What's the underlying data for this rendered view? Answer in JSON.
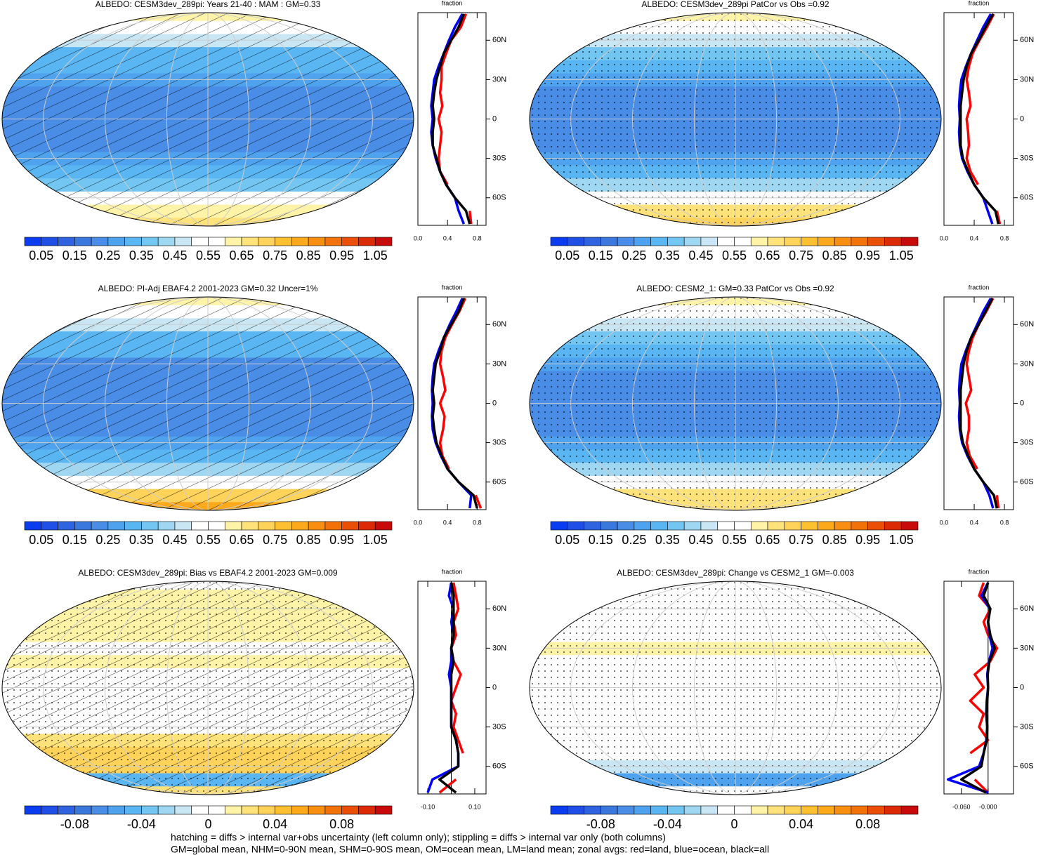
{
  "chart_data": [
    {
      "type": "map",
      "title": "ALBEDO: CESM3dev_289pi: Years 21-40 : MAM : GM=0.33",
      "hatching": true,
      "stippling": false,
      "xlim": [
        0,
        1.1
      ],
      "xticks": [
        0.05,
        0.15,
        0.25,
        0.35,
        0.45,
        0.55,
        0.65,
        0.75,
        0.85,
        0.95,
        1.05
      ],
      "colors": [
        "#0a3cf0",
        "#1f4fe6",
        "#2f63e0",
        "#3b78de",
        "#4a8de6",
        "#4fa3ee",
        "#5ab6f2",
        "#74c6f2",
        "#9fd6f2",
        "#c8e6f4",
        "#ffffff",
        "#ffffff",
        "#fff3a8",
        "#ffe27a",
        "#ffd25a",
        "#fdc030",
        "#fca91b",
        "#f88f10",
        "#f27108",
        "#ea4f05",
        "#dd2a06",
        "#c80a0a"
      ]
    },
    {
      "type": "line",
      "x_label": "fraction",
      "lat": [
        -80,
        -70,
        -60,
        -50,
        -40,
        -30,
        -20,
        -10,
        0,
        10,
        20,
        30,
        40,
        50,
        60,
        70,
        80
      ],
      "ylim": [
        -81,
        81
      ],
      "yticks": [
        {
          "value": -60,
          "label": "60S"
        },
        {
          "value": -30,
          "label": "30S"
        },
        0,
        {
          "value": 30,
          "label": "30N"
        },
        {
          "value": 60,
          "label": "60N"
        }
      ],
      "xlim": [
        0,
        0.92
      ],
      "xticks": [
        {
          "value": 0,
          "label": "0.0"
        },
        0.4,
        0.8
      ],
      "series": [
        {
          "color": "#ff0000",
          "values": [
            0.72,
            0.7,
            null,
            0.4,
            0.3,
            0.28,
            0.3,
            0.32,
            0.28,
            0.33,
            0.3,
            0.32,
            0.32,
            0.38,
            0.45,
            0.58,
            0.65
          ]
        },
        {
          "color": "#0000ff",
          "values": [
            0.62,
            0.55,
            0.5,
            0.38,
            0.3,
            0.24,
            0.2,
            0.18,
            0.2,
            0.18,
            0.2,
            0.22,
            0.28,
            0.35,
            0.42,
            0.5,
            0.6
          ]
        },
        {
          "color": "#000000",
          "values": [
            0.7,
            0.65,
            0.5,
            0.38,
            0.3,
            0.25,
            0.2,
            0.2,
            0.22,
            0.2,
            0.22,
            0.25,
            0.3,
            0.35,
            0.45,
            0.55,
            0.62
          ]
        }
      ]
    },
    {
      "type": "map",
      "title": "ALBEDO: CESM3dev_289pi PatCor vs Obs =0.92",
      "hatching": false,
      "stippling": true,
      "xlim": [
        0,
        1.1
      ],
      "xticks": [
        0.05,
        0.15,
        0.25,
        0.35,
        0.45,
        0.55,
        0.65,
        0.75,
        0.85,
        0.95,
        1.05
      ],
      "colors": [
        "#0a3cf0",
        "#1f4fe6",
        "#2f63e0",
        "#3b78de",
        "#4a8de6",
        "#4fa3ee",
        "#5ab6f2",
        "#74c6f2",
        "#9fd6f2",
        "#c8e6f4",
        "#ffffff",
        "#ffffff",
        "#fff3a8",
        "#ffe27a",
        "#ffd25a",
        "#fdc030",
        "#fca91b",
        "#f88f10",
        "#f27108",
        "#ea4f05",
        "#dd2a06",
        "#c80a0a"
      ]
    },
    {
      "type": "line",
      "x_label": "fraction",
      "lat": [
        -80,
        -70,
        -60,
        -50,
        -40,
        -30,
        -20,
        -10,
        0,
        10,
        20,
        30,
        40,
        50,
        60,
        70,
        80
      ],
      "ylim": [
        -81,
        81
      ],
      "yticks": [
        {
          "value": -60,
          "label": "60S"
        },
        {
          "value": -30,
          "label": "30S"
        },
        0,
        {
          "value": 30,
          "label": "30N"
        },
        {
          "value": 60,
          "label": "60N"
        }
      ],
      "xlim": [
        0,
        0.92
      ],
      "xticks": [
        {
          "value": 0,
          "label": "0.0"
        },
        0.4,
        0.8
      ],
      "series": [
        {
          "color": "#ff0000",
          "values": [
            0.74,
            0.7,
            null,
            0.45,
            0.35,
            0.3,
            0.33,
            0.32,
            0.3,
            0.35,
            0.33,
            0.3,
            0.33,
            0.38,
            0.47,
            0.57,
            0.66
          ]
        },
        {
          "color": "#0000ff",
          "values": [
            0.64,
            0.58,
            0.52,
            0.4,
            0.31,
            0.24,
            0.21,
            0.2,
            0.21,
            0.2,
            0.21,
            0.23,
            0.29,
            0.36,
            0.44,
            0.52,
            0.62
          ]
        },
        {
          "color": "#000000",
          "values": [
            0.72,
            0.68,
            0.52,
            0.4,
            0.32,
            0.25,
            0.22,
            0.22,
            0.22,
            0.22,
            0.24,
            0.26,
            0.3,
            0.36,
            0.46,
            0.55,
            0.65
          ]
        }
      ]
    },
    {
      "type": "map",
      "title": "ALBEDO: PI-Adj EBAF4.2 2001-2023 GM=0.32 Uncer=1%",
      "hatching": true,
      "stippling": false,
      "xlim": [
        0,
        1.1
      ],
      "xticks": [
        0.05,
        0.15,
        0.25,
        0.35,
        0.45,
        0.55,
        0.65,
        0.75,
        0.85,
        0.95,
        1.05
      ],
      "colors": [
        "#0a3cf0",
        "#1f4fe6",
        "#2f63e0",
        "#3b78de",
        "#4a8de6",
        "#4fa3ee",
        "#5ab6f2",
        "#74c6f2",
        "#9fd6f2",
        "#c8e6f4",
        "#ffffff",
        "#ffffff",
        "#fff3a8",
        "#ffe27a",
        "#ffd25a",
        "#fdc030",
        "#fca91b",
        "#f88f10",
        "#f27108",
        "#ea4f05",
        "#dd2a06",
        "#c80a0a"
      ]
    },
    {
      "type": "line",
      "x_label": "fraction",
      "lat": [
        -80,
        -70,
        -60,
        -50,
        -40,
        -30,
        -20,
        -10,
        0,
        10,
        20,
        30,
        40,
        50,
        60,
        70,
        80
      ],
      "ylim": [
        -81,
        81
      ],
      "yticks": [
        {
          "value": -60,
          "label": "60S"
        },
        {
          "value": -30,
          "label": "30S"
        },
        0,
        {
          "value": 30,
          "label": "30N"
        },
        {
          "value": 60,
          "label": "60N"
        }
      ],
      "xlim": [
        0,
        0.92
      ],
      "xticks": [
        {
          "value": 0,
          "label": "0.0"
        },
        0.4,
        0.8
      ],
      "series": [
        {
          "color": "#ff0000",
          "values": [
            0.85,
            0.78,
            null,
            0.42,
            0.33,
            0.3,
            0.34,
            0.36,
            0.3,
            0.37,
            0.34,
            0.3,
            0.32,
            0.37,
            0.46,
            0.56,
            0.64
          ]
        },
        {
          "color": "#0000ff",
          "values": [
            0.7,
            0.72,
            0.55,
            0.4,
            0.31,
            0.24,
            0.2,
            0.19,
            0.2,
            0.19,
            0.2,
            0.22,
            0.28,
            0.35,
            0.43,
            0.52,
            0.6
          ]
        },
        {
          "color": "#000000",
          "values": [
            0.8,
            0.75,
            0.55,
            0.4,
            0.32,
            0.25,
            0.22,
            0.2,
            0.22,
            0.2,
            0.22,
            0.24,
            0.3,
            0.35,
            0.45,
            0.55,
            0.62
          ]
        }
      ]
    },
    {
      "type": "map",
      "title": "ALBEDO: CESM2_1: GM=0.33 PatCor vs Obs =0.92",
      "hatching": false,
      "stippling": true,
      "xlim": [
        0,
        1.1
      ],
      "xticks": [
        0.05,
        0.15,
        0.25,
        0.35,
        0.45,
        0.55,
        0.65,
        0.75,
        0.85,
        0.95,
        1.05
      ],
      "colors": [
        "#0a3cf0",
        "#1f4fe6",
        "#2f63e0",
        "#3b78de",
        "#4a8de6",
        "#4fa3ee",
        "#5ab6f2",
        "#74c6f2",
        "#9fd6f2",
        "#c8e6f4",
        "#ffffff",
        "#ffffff",
        "#fff3a8",
        "#ffe27a",
        "#ffd25a",
        "#fdc030",
        "#fca91b",
        "#f88f10",
        "#f27108",
        "#ea4f05",
        "#dd2a06",
        "#c80a0a"
      ]
    },
    {
      "type": "line",
      "x_label": "fraction",
      "lat": [
        -80,
        -70,
        -60,
        -50,
        -40,
        -30,
        -20,
        -10,
        0,
        10,
        20,
        30,
        40,
        50,
        60,
        70,
        80
      ],
      "ylim": [
        -81,
        81
      ],
      "yticks": [
        {
          "value": -60,
          "label": "60S"
        },
        {
          "value": -30,
          "label": "30S"
        },
        0,
        {
          "value": 30,
          "label": "30N"
        },
        {
          "value": 60,
          "label": "60N"
        }
      ],
      "xlim": [
        0,
        0.92
      ],
      "xticks": [
        {
          "value": 0,
          "label": "0.0"
        },
        0.4,
        0.8
      ],
      "series": [
        {
          "color": "#ff0000",
          "values": [
            0.72,
            0.7,
            null,
            0.44,
            0.34,
            0.3,
            0.33,
            0.33,
            0.29,
            0.36,
            0.33,
            0.3,
            0.33,
            0.38,
            0.46,
            0.56,
            0.65
          ]
        },
        {
          "color": "#0000ff",
          "values": [
            0.65,
            0.6,
            0.52,
            0.4,
            0.31,
            0.24,
            0.21,
            0.2,
            0.21,
            0.2,
            0.21,
            0.23,
            0.29,
            0.36,
            0.44,
            0.52,
            0.62
          ]
        },
        {
          "color": "#000000",
          "values": [
            0.7,
            0.66,
            0.52,
            0.4,
            0.32,
            0.25,
            0.22,
            0.22,
            0.22,
            0.22,
            0.24,
            0.26,
            0.3,
            0.36,
            0.46,
            0.55,
            0.64
          ]
        }
      ]
    },
    {
      "type": "map",
      "title": "ALBEDO: CESM3dev_289pi: Bias vs EBAF4.2 2001-2023 GM=0.009",
      "hatching": true,
      "stippling": true,
      "xlim": [
        -0.11,
        0.11
      ],
      "xticks": [
        -0.08,
        -0.04,
        0,
        0.04,
        0.08
      ],
      "colors": [
        "#0a3cf0",
        "#1f4fe6",
        "#2f63e0",
        "#3b78de",
        "#4a8de6",
        "#4fa3ee",
        "#5ab6f2",
        "#74c6f2",
        "#9fd6f2",
        "#c8e6f4",
        "#ffffff",
        "#ffffff",
        "#fff3a8",
        "#ffe27a",
        "#ffd25a",
        "#fdc030",
        "#fca91b",
        "#f88f10",
        "#f27108",
        "#ea4f05",
        "#dd2a06",
        "#c80a0a"
      ]
    },
    {
      "type": "line",
      "x_label": "fraction",
      "lat": [
        -80,
        -70,
        -60,
        -50,
        -40,
        -30,
        -20,
        -10,
        0,
        10,
        20,
        30,
        40,
        50,
        60,
        70,
        80
      ],
      "ylim": [
        -81,
        81
      ],
      "yticks": [
        {
          "value": -60,
          "label": "60S"
        },
        {
          "value": -30,
          "label": "30S"
        },
        0,
        {
          "value": 30,
          "label": "30N"
        },
        {
          "value": 60,
          "label": "60N"
        }
      ],
      "xlim": [
        -0.142,
        0.148
      ],
      "xticks": [
        {
          "value": -0.1,
          "label": "-0.10"
        },
        {
          "value": 0.1,
          "label": "0.10"
        }
      ],
      "series": [
        {
          "color": "#ff0000",
          "values": [
            -0.05,
            0.02,
            null,
            0.05,
            0.03,
            0.01,
            0.02,
            0.0,
            0.02,
            0.04,
            0.01,
            0.0,
            0.02,
            0.01,
            0.03,
            0.02,
            0.01
          ]
        },
        {
          "color": "#0000ff",
          "values": [
            -0.1,
            -0.08,
            0.03,
            0.03,
            0.02,
            0.0,
            0.0,
            0.0,
            0.0,
            -0.01,
            0.0,
            0.0,
            0.01,
            0.0,
            0.01,
            -0.01,
            0.0
          ]
        },
        {
          "color": "#000000",
          "values": [
            0.02,
            -0.05,
            0.03,
            0.03,
            0.02,
            0.0,
            0.0,
            0.0,
            0.0,
            0.0,
            0.01,
            0.0,
            0.01,
            0.01,
            0.01,
            0.01,
            0.0
          ]
        }
      ]
    },
    {
      "type": "map",
      "title": "ALBEDO: CESM3dev_289pi: Change vs CESM2_1 GM=-0.003",
      "hatching": false,
      "stippling": true,
      "xlim": [
        -0.11,
        0.11
      ],
      "xticks": [
        -0.08,
        -0.04,
        0,
        0.04,
        0.08
      ],
      "colors": [
        "#0a3cf0",
        "#1f4fe6",
        "#2f63e0",
        "#3b78de",
        "#4a8de6",
        "#4fa3ee",
        "#5ab6f2",
        "#74c6f2",
        "#9fd6f2",
        "#c8e6f4",
        "#ffffff",
        "#ffffff",
        "#fff3a8",
        "#ffe27a",
        "#ffd25a",
        "#fdc030",
        "#fca91b",
        "#f88f10",
        "#f27108",
        "#ea4f05",
        "#dd2a06",
        "#c80a0a"
      ]
    },
    {
      "type": "line",
      "x_label": "fraction",
      "lat": [
        -80,
        -70,
        -60,
        -50,
        -40,
        -30,
        -20,
        -10,
        0,
        10,
        20,
        30,
        40,
        50,
        60,
        70,
        80
      ],
      "ylim": [
        -81,
        81
      ],
      "yticks": [
        {
          "value": -60,
          "label": "60S"
        },
        {
          "value": -30,
          "label": "30S"
        },
        0,
        {
          "value": 30,
          "label": "30N"
        },
        {
          "value": 60,
          "label": "60N"
        }
      ],
      "xlim": [
        -0.099,
        0.057
      ],
      "xticks": [
        {
          "value": -0.06,
          "label": "-0.060"
        },
        {
          "value": 0,
          "label": "-0.000"
        }
      ],
      "series": [
        {
          "color": "#ff0000",
          "values": [
            0.0,
            -0.03,
            null,
            -0.04,
            0.0,
            -0.02,
            -0.01,
            -0.04,
            -0.01,
            -0.03,
            0.005,
            0.02,
            0.0,
            -0.01,
            0.005,
            -0.02,
            -0.01
          ]
        },
        {
          "color": "#0000ff",
          "values": [
            0.0,
            -0.09,
            -0.02,
            -0.01,
            -0.004,
            -0.002,
            -0.004,
            -0.003,
            0.0,
            -0.002,
            0.002,
            0.01,
            0.003,
            0.0,
            0.004,
            -0.015,
            0.0
          ]
        },
        {
          "color": "#000000",
          "values": [
            -0.005,
            -0.06,
            -0.015,
            -0.01,
            -0.003,
            -0.002,
            -0.004,
            -0.002,
            0.0,
            -0.001,
            0.003,
            0.015,
            0.005,
            0.0,
            0.005,
            -0.01,
            0.0
          ]
        }
      ]
    }
  ],
  "footnotes": [
    "hatching = diffs > internal var+obs uncertainty (left column only); stippling = diffs > internal var only (both columns)",
    "GM=global mean, NHM=0-90N mean, SHM=0-90S mean, OM=ocean mean, LM=land mean; zonal avgs: red=land, blue=ocean, black=all"
  ]
}
